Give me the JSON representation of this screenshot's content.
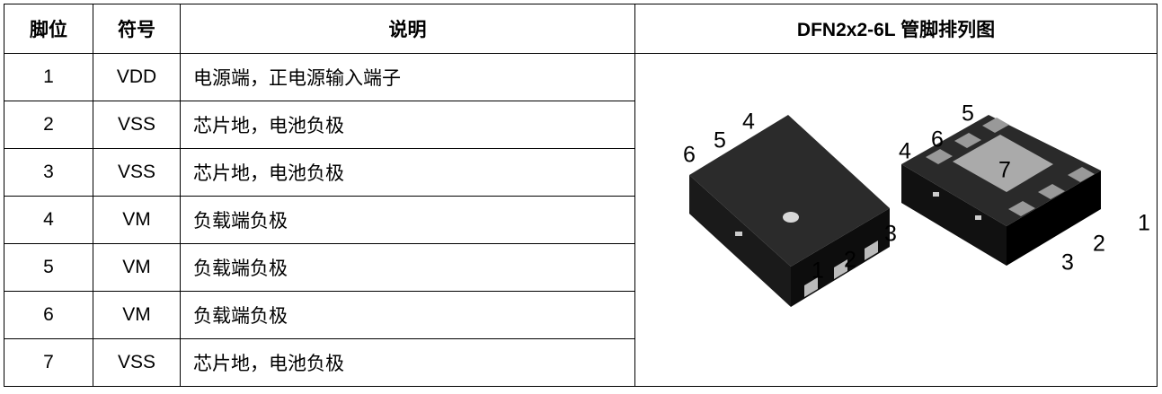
{
  "table": {
    "header": [
      "脚位",
      "符号",
      "说明",
      "DFN2x2-6L 管脚排列图"
    ],
    "rows": [
      [
        "1",
        "VDD",
        "电源端，正电源输入端子"
      ],
      [
        "2",
        "VSS",
        "芯片地，电池负极"
      ],
      [
        "3",
        "VSS",
        "芯片地，电池负极"
      ],
      [
        "4",
        "VM",
        "负载端负极"
      ],
      [
        "5",
        "VM",
        "负载端负极"
      ],
      [
        "6",
        "VM",
        "负载端负极"
      ],
      [
        "7",
        "VSS",
        "芯片地，电池负极"
      ]
    ]
  },
  "diagram": {
    "top_view_labels": [
      "6",
      "5",
      "4",
      "1",
      "2",
      "3"
    ],
    "bottom_view_labels": [
      "4",
      "6",
      "5",
      "7",
      "1",
      "2",
      "3"
    ]
  }
}
